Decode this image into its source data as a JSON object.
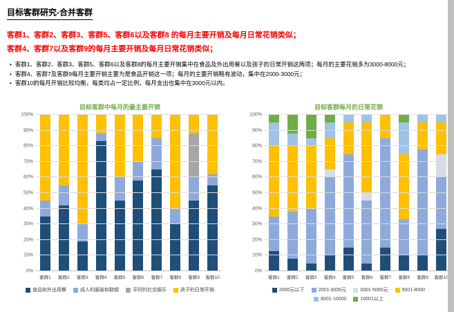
{
  "slide": {
    "title": "目标客群研究-合并客群",
    "highlight_lines": [
      "客群1、客群2、客群3、客群5、客群6以及客群8 的每月主要开销及每月日常花销类似；",
      "客群4、客群7以及客群9的每月主要开销及每月日常花销类似；"
    ],
    "bullets": [
      "客群1、客群2、客群3、客群5、客群6以及客群8的每月主要开销集中在食品及外出用餐以及孩子的日常开销这两项；每月的主要花销多为3000-8000元；",
      "客群4、客群7及客群9每月主要开销主要为是食品开销这一项；每月的主要开销略有波动，集中在2000-3000元；",
      "客群10的每月开销比较均衡，每类均占一定比例，每月支出也集中在3000元以内。"
    ]
  },
  "colors": {
    "highlight_red": "#FF0000",
    "chart_title_green": "#70AD47",
    "edge_strip_gray": "#BFBFBF"
  },
  "chart_data": [
    {
      "type": "bar",
      "stacked": true,
      "title": "目标客群中每月的最主要开销",
      "title_color": "#70AD47",
      "categories": [
        "客群1",
        "客群2",
        "客群3",
        "客群4",
        "客群5",
        "客群6",
        "客群7",
        "客群8",
        "客群9",
        "客群10"
      ],
      "ylim": [
        0,
        100
      ],
      "y_tick_step": 10,
      "y_tick_format": "percent",
      "grid": true,
      "legend_position": "bottom",
      "series": [
        {
          "name": "食品和外出用餐",
          "color": "#1F4E79",
          "values": [
            35,
            42,
            19,
            83,
            45,
            58,
            65,
            30,
            45,
            55
          ]
        },
        {
          "name": "成人的服装和鞋帽",
          "color": "#8EAADB",
          "values": [
            10,
            13,
            11,
            5,
            15,
            12,
            20,
            10,
            15,
            7
          ]
        },
        {
          "name": "平时的社交娱乐",
          "color": "#A6A6A6",
          "values": [
            0,
            0,
            0,
            0,
            0,
            0,
            0,
            0,
            28,
            0
          ]
        },
        {
          "name": "孩子的日常开销",
          "color": "#FFC000",
          "values": [
            55,
            45,
            70,
            12,
            40,
            30,
            15,
            60,
            12,
            38
          ]
        }
      ]
    },
    {
      "type": "bar",
      "stacked": true,
      "title": "目标客群每月的日常花销",
      "title_color": "#70AD47",
      "categories": [
        "客群1",
        "客群2",
        "客群3",
        "客群4",
        "客群5",
        "客群6",
        "客群7",
        "客群8",
        "客群9",
        "客群10"
      ],
      "ylim": [
        0,
        100
      ],
      "y_tick_step": 10,
      "y_tick_format": "percent",
      "grid": true,
      "legend_position": "bottom",
      "series": [
        {
          "name": "2000元以下",
          "color": "#1F4E79",
          "values": [
            13,
            8,
            5,
            10,
            15,
            5,
            15,
            10,
            10,
            27
          ]
        },
        {
          "name": "2001-3000元",
          "color": "#8EAADB",
          "values": [
            22,
            30,
            35,
            50,
            60,
            40,
            70,
            23,
            68,
            33
          ]
        },
        {
          "name": "3001-5000元",
          "color": "#D6DCE5",
          "values": [
            0,
            0,
            0,
            5,
            0,
            5,
            0,
            0,
            0,
            15
          ]
        },
        {
          "name": "5001-8000",
          "color": "#FFC000",
          "values": [
            45,
            42,
            40,
            20,
            20,
            45,
            15,
            42,
            17,
            20
          ]
        },
        {
          "name": "8001-10000",
          "color": "#9DC3E6",
          "values": [
            15,
            8,
            5,
            10,
            5,
            5,
            0,
            20,
            5,
            5
          ]
        },
        {
          "name": "10001以上",
          "color": "#70AD47",
          "values": [
            5,
            12,
            15,
            5,
            0,
            0,
            0,
            5,
            0,
            0
          ]
        }
      ]
    }
  ]
}
